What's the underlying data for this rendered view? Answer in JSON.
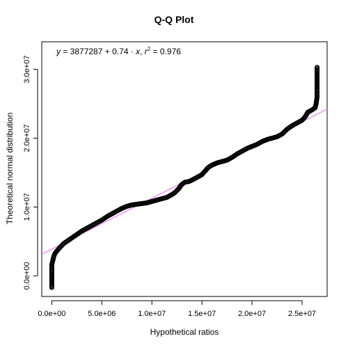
{
  "chart_data": {
    "type": "scatter",
    "title": "Q-Q Plot",
    "xlabel": "Hypothetical ratios",
    "ylabel": "Theoretical normal distribution",
    "xlim": [
      -1000000,
      27500000
    ],
    "ylim": [
      -3000000,
      34000000
    ],
    "x_ticks": [
      0,
      5000000,
      10000000,
      15000000,
      20000000,
      25000000
    ],
    "x_tick_labels": [
      "0.0e+00",
      "5.0e+06",
      "1.0e+07",
      "1.5e+07",
      "2.0e+07",
      "2.5e+07"
    ],
    "y_ticks": [
      0,
      10000000,
      20000000,
      30000000
    ],
    "y_tick_labels": [
      "0.0e+00",
      "1.0e+07",
      "2.0e+07",
      "3.0e+07"
    ],
    "grid": false,
    "marker": "open-circle",
    "point_color": "#000000",
    "fit_line": {
      "intercept": 3877287,
      "slope": 0.74,
      "color": "#ee82ee"
    },
    "annotation": {
      "y_symbol": "y",
      "middle": " = 3877287 + 0.74 · ",
      "x_symbol": "x",
      "sep": ",  ",
      "r_symbol": "r",
      "r_exp": "2",
      "r_value": " = 0.976"
    },
    "curve": [
      [
        0,
        -1700000
      ],
      [
        0,
        -700000
      ],
      [
        0,
        500000
      ],
      [
        0,
        1200000
      ],
      [
        0,
        1600000
      ],
      [
        200000,
        2800000
      ],
      [
        300000,
        3200000
      ],
      [
        500000,
        3600000
      ],
      [
        800000,
        4100000
      ],
      [
        1200000,
        4700000
      ],
      [
        1600000,
        5100000
      ],
      [
        2000000,
        5500000
      ],
      [
        2500000,
        6000000
      ],
      [
        3000000,
        6500000
      ],
      [
        3500000,
        6900000
      ],
      [
        4000000,
        7300000
      ],
      [
        4500000,
        7700000
      ],
      [
        5000000,
        8100000
      ],
      [
        5500000,
        8600000
      ],
      [
        6000000,
        9000000
      ],
      [
        6500000,
        9400000
      ],
      [
        7000000,
        9800000
      ],
      [
        7500000,
        10100000
      ],
      [
        8000000,
        10300000
      ],
      [
        8500000,
        10400000
      ],
      [
        9000000,
        10500000
      ],
      [
        9500000,
        10600000
      ],
      [
        10000000,
        10800000
      ],
      [
        10500000,
        11000000
      ],
      [
        11000000,
        11200000
      ],
      [
        11500000,
        11400000
      ],
      [
        12000000,
        11800000
      ],
      [
        12300000,
        12100000
      ],
      [
        12700000,
        12700000
      ],
      [
        13000000,
        13300000
      ],
      [
        13300000,
        13600000
      ],
      [
        13700000,
        13700000
      ],
      [
        14000000,
        13900000
      ],
      [
        14500000,
        14300000
      ],
      [
        15000000,
        14700000
      ],
      [
        15300000,
        15200000
      ],
      [
        15600000,
        15700000
      ],
      [
        16000000,
        16100000
      ],
      [
        16500000,
        16400000
      ],
      [
        17000000,
        16600000
      ],
      [
        17500000,
        16800000
      ],
      [
        18000000,
        17200000
      ],
      [
        18500000,
        17700000
      ],
      [
        19000000,
        18100000
      ],
      [
        19500000,
        18500000
      ],
      [
        20000000,
        18800000
      ],
      [
        20500000,
        19100000
      ],
      [
        21000000,
        19500000
      ],
      [
        21500000,
        19800000
      ],
      [
        22000000,
        20000000
      ],
      [
        22500000,
        20200000
      ],
      [
        23000000,
        20600000
      ],
      [
        23500000,
        21300000
      ],
      [
        24000000,
        21800000
      ],
      [
        24500000,
        22200000
      ],
      [
        25000000,
        22600000
      ],
      [
        25300000,
        23100000
      ],
      [
        25600000,
        23800000
      ],
      [
        26000000,
        24100000
      ],
      [
        26300000,
        24400000
      ],
      [
        26400000,
        25000000
      ],
      [
        26500000,
        26000000
      ],
      [
        26500000,
        26500000
      ],
      [
        26500000,
        26800000
      ],
      [
        26500000,
        29200000
      ],
      [
        26500000,
        29800000
      ],
      [
        26500000,
        30300000
      ]
    ]
  }
}
